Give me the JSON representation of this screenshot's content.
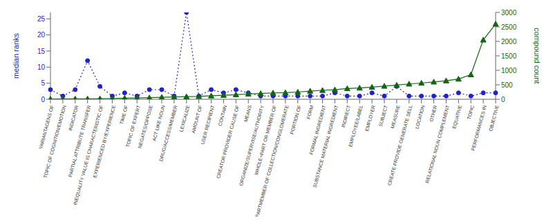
{
  "chart_data": {
    "type": "line",
    "categories": [
      "VARIANTAGENS OF",
      "TOPIC OF COGNITION/EMOTION",
      "INDICATOR",
      "PARTIAL ATTRIBUTE TRANSFER",
      "INEQUALITY VALUE IS CHARACTERISTIC OF",
      "EXPERIENCED BY/EXPERIENCE",
      "TIME OF",
      "TOPIC OF EXPERT",
      "NEGATES/OPPOSE",
      "ACT LIKE NOUN",
      "DRUG/ACCESS/MEMBER",
      "LEXICALIZE",
      "AMOUNT OF",
      "USER RECIPIENT",
      "CONTAIN",
      "CREATOR PROVIDER CAUSE OF",
      "MEANS",
      "ORGANIZE/SUPERVISE/AUTHORITY",
      "WHOLE+PART OR MEMBER OF",
      "PARTMEMBER OF COLLECTION/CONGLOMERATE",
      "PORTION OF",
      "FORM",
      "FORMAL INGREDIENT",
      "SUBSTANCE MATERIAL INGREDIENT",
      "INDIRECT",
      "EMPLOYEE/LABEL",
      "EMPLOYER",
      "SUBJECT",
      "MEASURE",
      "CREATE PROVIDE GENERATE SELL",
      "LOCATION",
      "OTHER",
      "RELATIONAL NOUN COMPLEMENT",
      "EQUATIVE",
      "TOPIC",
      "PERFORMANCES IN",
      "OBJECTIVE"
    ],
    "series": [
      {
        "color": "#2222cc",
        "marker": "circle",
        "line_style": "dotted",
        "values": [
          3,
          1,
          3,
          12,
          4,
          1,
          2,
          1,
          3,
          3,
          1,
          27,
          1,
          3,
          2,
          3,
          2,
          1,
          1,
          1,
          1,
          1,
          1,
          2,
          1,
          1,
          2,
          1,
          4,
          1,
          1,
          1,
          1,
          2,
          1,
          2,
          2
        ]
      },
      {
        "color": "#116611",
        "marker": "triangle",
        "line_style": "solid",
        "axis": "y2",
        "values": [
          10,
          15,
          15,
          15,
          20,
          30,
          40,
          45,
          55,
          70,
          80,
          90,
          100,
          120,
          140,
          160,
          185,
          200,
          220,
          230,
          250,
          285,
          310,
          330,
          370,
          390,
          420,
          455,
          490,
          530,
          560,
          600,
          640,
          700,
          850,
          2050,
          2600
        ]
      }
    ],
    "ylabel": "median ranks",
    "y2label": "compound count",
    "ylim": [
      0,
      27
    ],
    "yticks": [
      0,
      5,
      10,
      15,
      20,
      25
    ],
    "y2lim": [
      0,
      3000
    ],
    "y2ticks": [
      0,
      500,
      1000,
      1500,
      2000,
      2500,
      3000
    ],
    "grid": false
  }
}
